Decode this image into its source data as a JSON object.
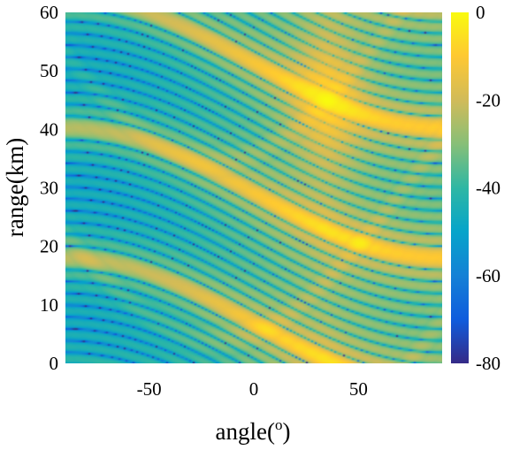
{
  "chart_data": {
    "type": "heatmap",
    "title": "",
    "xlabel": "angle(o)",
    "xlabel_base": "angle(",
    "xlabel_sup": "o",
    "xlabel_close": ")",
    "ylabel": "range(km)",
    "xlim": [
      -90,
      90
    ],
    "ylim": [
      0,
      60
    ],
    "xticks": [
      -50,
      0,
      50
    ],
    "xtick_labels": [
      "-50",
      "0",
      "50"
    ],
    "yticks": [
      0,
      10,
      20,
      30,
      40,
      50,
      60
    ],
    "ytick_labels": [
      "0",
      "10",
      "20",
      "30",
      "40",
      "50",
      "60"
    ],
    "colorbar": {
      "range": [
        -80,
        0
      ],
      "ticks": [
        0,
        -20,
        -40,
        -60,
        -80
      ],
      "tick_labels": [
        "0",
        "-20",
        "-40",
        "-60",
        "-80"
      ],
      "colormap": "parula"
    },
    "colormap_stops": [
      "#352a87",
      "#0f5cdd",
      "#1481d6",
      "#06a4ca",
      "#2eb7a4",
      "#87bf77",
      "#d1bb59",
      "#fec832",
      "#f9fb0e"
    ],
    "mainlobe": {
      "angle_deg": 35,
      "range_km": 45,
      "level_db": 0
    },
    "grid": false,
    "legend": "none"
  }
}
